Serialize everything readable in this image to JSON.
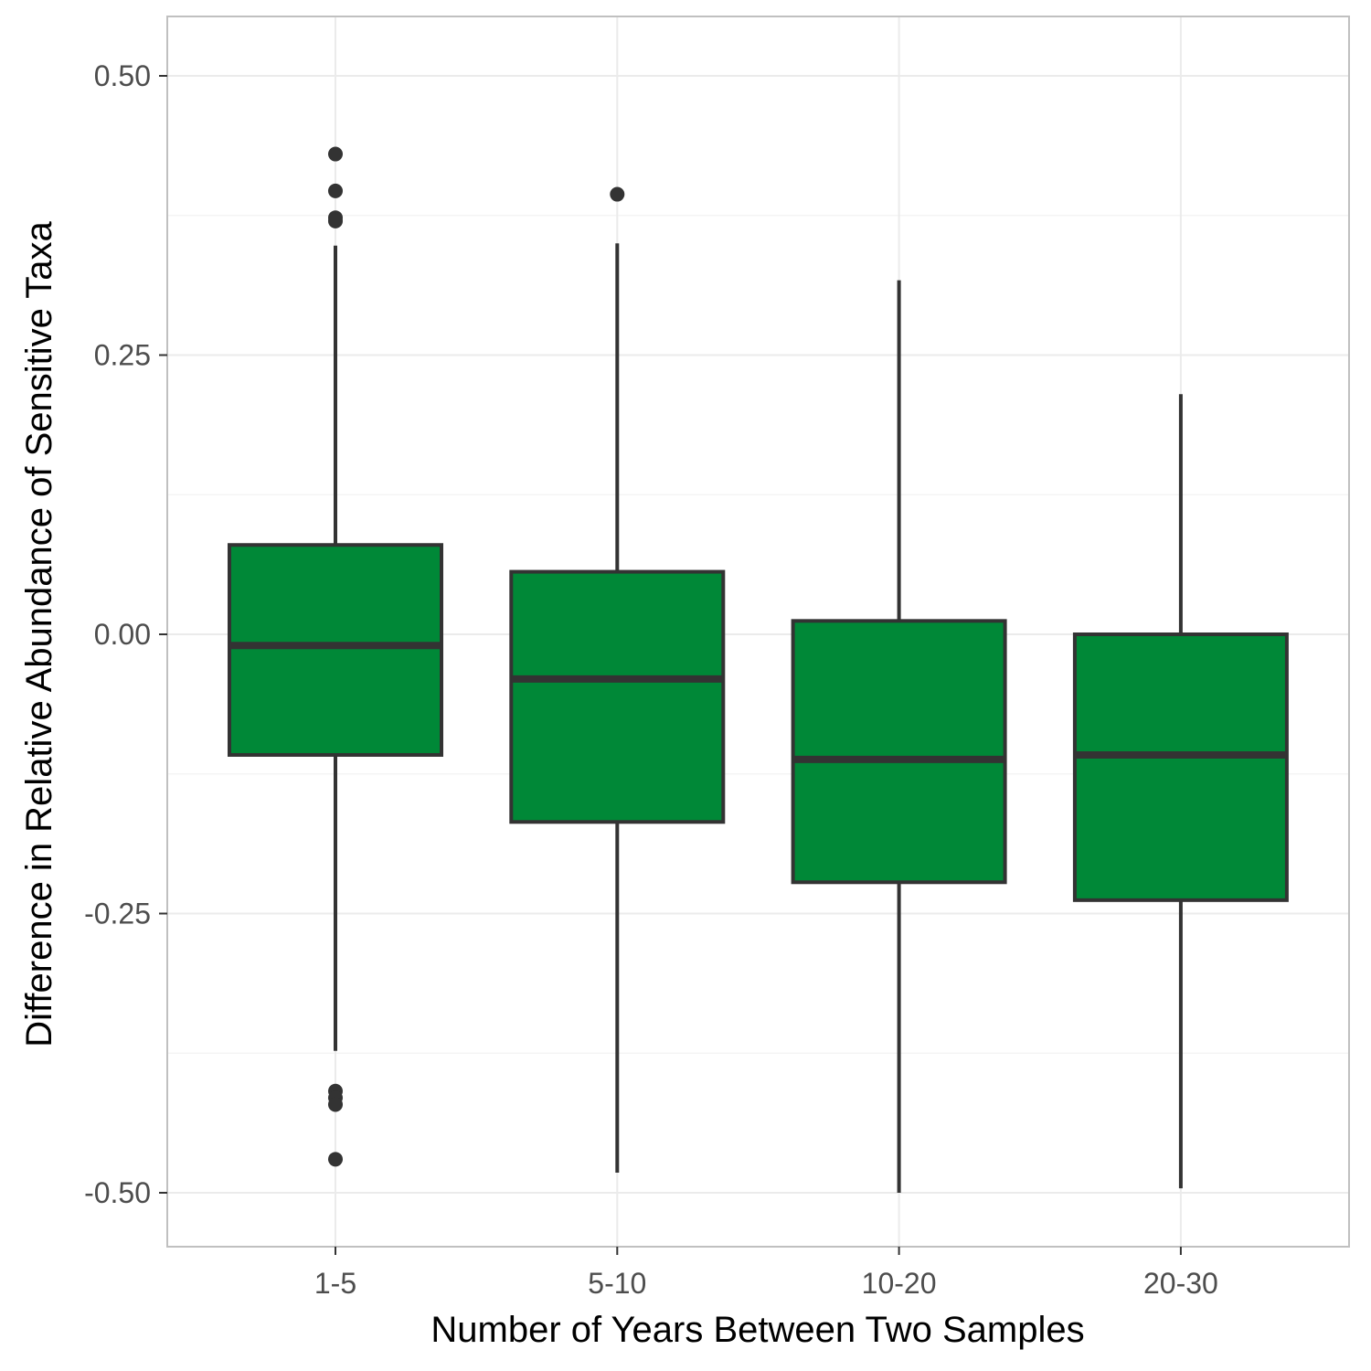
{
  "chart_data": {
    "type": "boxplot",
    "title": "",
    "xlabel": "Number of Years Between Two Samples",
    "ylabel": "Difference in Relative Abundance of Sensitive Taxa",
    "ylim": [
      -0.55,
      0.5
    ],
    "yticks": [
      -0.5,
      -0.25,
      0.0,
      0.25,
      0.5
    ],
    "ytick_labels": [
      "-0.50",
      "-0.25",
      "0.00",
      "0.25",
      "0.50"
    ],
    "grid": true,
    "fill_color": "#008837",
    "line_color": "#333333",
    "categories": [
      "1-5",
      "5-10",
      "10-20",
      "20-30"
    ],
    "boxes": [
      {
        "category": "1-5",
        "whisker_low": -0.373,
        "q1": -0.108,
        "median": -0.01,
        "q3": 0.08,
        "whisker_high": 0.348,
        "outliers": [
          0.43,
          0.397,
          0.373,
          0.37,
          -0.409,
          -0.415,
          -0.421,
          -0.47
        ]
      },
      {
        "category": "5-10",
        "whisker_low": -0.482,
        "q1": -0.168,
        "median": -0.04,
        "q3": 0.056,
        "whisker_high": 0.35,
        "outliers": [
          0.394
        ]
      },
      {
        "category": "10-20",
        "whisker_low": -0.5,
        "q1": -0.222,
        "median": -0.112,
        "q3": 0.012,
        "whisker_high": 0.317,
        "outliers": []
      },
      {
        "category": "20-30",
        "whisker_low": -0.496,
        "q1": -0.238,
        "median": -0.108,
        "q3": 0.0,
        "whisker_high": 0.215,
        "outliers": []
      }
    ]
  }
}
